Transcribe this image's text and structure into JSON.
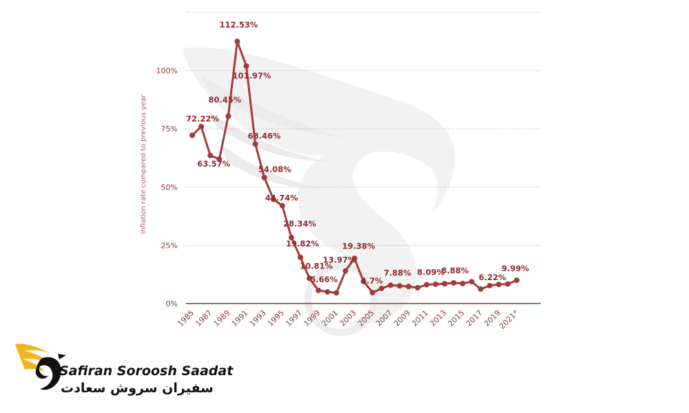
{
  "brand": {
    "name_en": "Safiran Soroosh Saadat",
    "name_fa": "سفیران سروش سعادت"
  },
  "colors": {
    "line": "#a33a3a",
    "grid": "#e3b8b8",
    "axis": "#8a3a3a"
  },
  "chart_data": {
    "type": "line",
    "title": "",
    "xlabel": "",
    "ylabel": "Inflation rate compared to previous year",
    "ylim": [
      0,
      125
    ],
    "yticks": [
      "0%",
      "25%",
      "50%",
      "75%",
      "100%"
    ],
    "yticks_values": [
      0,
      25,
      50,
      75,
      100
    ],
    "grid": true,
    "x": [
      "1985",
      "1986",
      "1987",
      "1988",
      "1989",
      "1990",
      "1991",
      "1992",
      "1993",
      "1994",
      "1995",
      "1996",
      "1997",
      "1998",
      "1999",
      "2000",
      "2001",
      "2002",
      "2003",
      "2004",
      "2005",
      "2006",
      "2007",
      "2008",
      "2009",
      "2010",
      "2011",
      "2012",
      "2013",
      "2014",
      "2015",
      "2016",
      "2017",
      "2018",
      "2019",
      "2020",
      "2021*"
    ],
    "xtick_labels": [
      "1985",
      "1987",
      "1989",
      "1991",
      "1993",
      "1995",
      "1997",
      "1999",
      "2001",
      "2003",
      "2005",
      "2007",
      "2009",
      "2011",
      "2013",
      "2015",
      "2017",
      "2019",
      "2021*"
    ],
    "series": [
      {
        "values": [
          72.22,
          76.0,
          63.57,
          62.0,
          80.45,
          112.53,
          101.97,
          68.46,
          54.08,
          44.74,
          42.0,
          28.34,
          19.82,
          10.81,
          5.66,
          5.0,
          4.6,
          13.97,
          19.38,
          9.5,
          4.7,
          6.5,
          7.88,
          7.6,
          7.3,
          6.8,
          8.09,
          8.3,
          8.5,
          8.88,
          8.6,
          9.4,
          6.22,
          7.7,
          8.2,
          8.4,
          9.99
        ]
      }
    ],
    "data_labels": [
      {
        "x": "1985",
        "text": "72.22%"
      },
      {
        "x": "1987",
        "text": "63.57%"
      },
      {
        "x": "1989",
        "text": "80.45%"
      },
      {
        "x": "1990",
        "text": "112.53%"
      },
      {
        "x": "1991",
        "text": "101.97%"
      },
      {
        "x": "1992",
        "text": "68.46%"
      },
      {
        "x": "1993",
        "text": "54.08%"
      },
      {
        "x": "1994",
        "text": "44.74%"
      },
      {
        "x": "1996",
        "text": "28.34%"
      },
      {
        "x": "1997",
        "text": "19.82%"
      },
      {
        "x": "1998",
        "text": "10.81%"
      },
      {
        "x": "1999",
        "text": "5.66%"
      },
      {
        "x": "2002",
        "text": "13.97%"
      },
      {
        "x": "2003",
        "text": "19.38%"
      },
      {
        "x": "2005",
        "text": "4.7%"
      },
      {
        "x": "2007",
        "text": "7.88%"
      },
      {
        "x": "2011",
        "text": "8.09%"
      },
      {
        "x": "2014",
        "text": "8.88%"
      },
      {
        "x": "2017",
        "text": "6.22%"
      },
      {
        "x": "2021*",
        "text": "9.99%"
      }
    ]
  }
}
